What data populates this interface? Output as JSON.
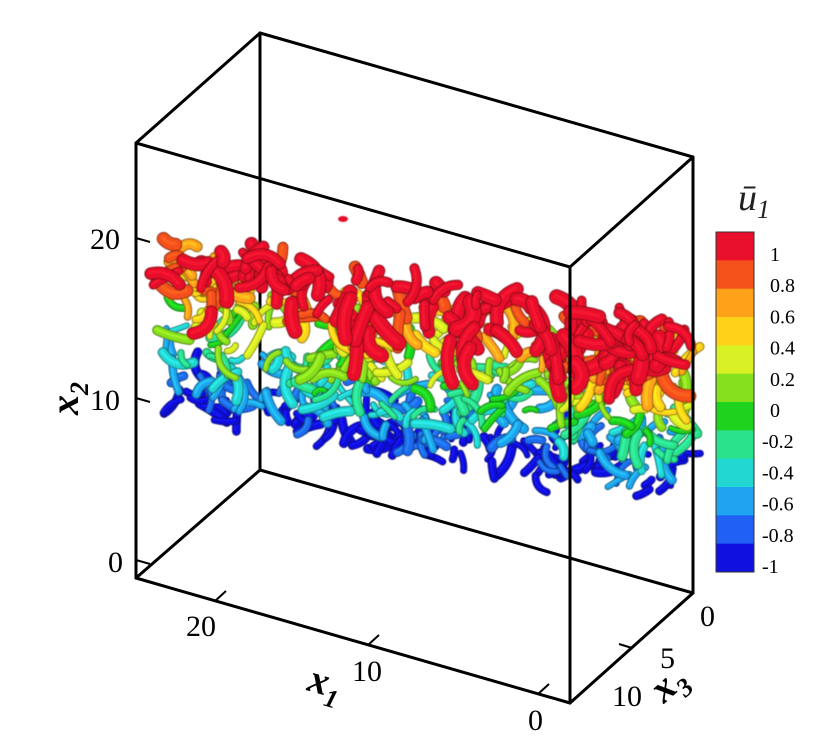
{
  "axes": {
    "x1": {
      "title": "x",
      "subscript": "1",
      "ticks": [
        "20",
        "10",
        "0"
      ]
    },
    "x2": {
      "title": "x",
      "subscript": "2",
      "ticks": [
        "20",
        "10",
        "0"
      ]
    },
    "x3": {
      "title": "x",
      "subscript": "3",
      "ticks": [
        "0",
        "5",
        "10"
      ]
    }
  },
  "colorbar": {
    "title": "ū",
    "title_subscript": "1",
    "labels": [
      "1",
      "0.8",
      "0.6",
      "0.4",
      "0.2",
      "0",
      "-0.2",
      "-0.4",
      "-0.6",
      "-0.8",
      "-1"
    ],
    "colors": [
      "#e8102a",
      "#f4501a",
      "#ffa21a",
      "#ffd21a",
      "#d8f024",
      "#86e01e",
      "#1ed21e",
      "#2ae28c",
      "#22d6d2",
      "#1ea4f0",
      "#2060f4",
      "#1010e0"
    ]
  },
  "colormap_stops": [
    "#1010e0",
    "#1e8cf0",
    "#22d6d2",
    "#1ed21e",
    "#c8f022",
    "#ffd21a",
    "#ff8c1a",
    "#e8102a"
  ]
}
